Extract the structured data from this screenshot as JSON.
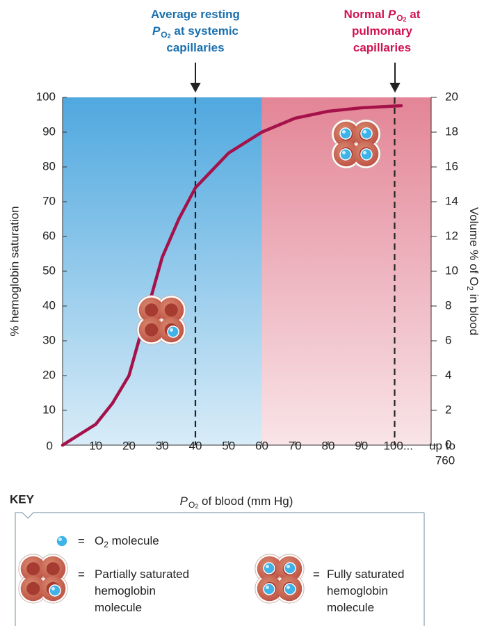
{
  "chart_data": {
    "type": "line",
    "x": [
      0,
      5,
      10,
      15,
      20,
      25,
      30,
      35,
      40,
      50,
      60,
      70,
      80,
      90,
      100,
      102
    ],
    "values": [
      0,
      3,
      6,
      12,
      20,
      37,
      54,
      65,
      74,
      84,
      90,
      94,
      96,
      97,
      97.5,
      97.6
    ],
    "color": "#a5124a",
    "xlim": [
      0,
      111
    ],
    "xticks": [
      0,
      10,
      20,
      30,
      40,
      50,
      60,
      70,
      80,
      90,
      {
        "value": 100,
        "label": "100..."
      }
    ],
    "x_extra_label": [
      "up to",
      "760"
    ],
    "ylim": [
      0,
      100
    ],
    "yticks": [
      10,
      20,
      30,
      40,
      50,
      60,
      70,
      80,
      90,
      100
    ],
    "y2lim": [
      0,
      20
    ],
    "y2ticks": [
      0,
      2,
      4,
      6,
      8,
      10,
      12,
      14,
      16,
      18,
      20
    ],
    "ylabel": "% hemoglobin saturation",
    "y2label": [
      {
        "t": "Volume % of O"
      },
      {
        "t": "2",
        "s": "sub"
      },
      {
        "t": " in blood"
      }
    ],
    "xlabel": [
      {
        "t": "P",
        "s": "i"
      },
      {
        "t": "O",
        "s": "sub"
      },
      {
        "t": "2",
        "s": "subsub"
      },
      {
        "t": " of blood (mm Hg)"
      }
    ],
    "regions": [
      {
        "x0": 0,
        "x1": 60,
        "color": "#4fa8df"
      },
      {
        "x0": 60,
        "x1": 111,
        "color": "#e38596"
      }
    ],
    "annotations": [
      {
        "x": 40,
        "color": "#1a6fae",
        "lines": [
          [
            {
              "t": "Average resting"
            }
          ],
          [
            {
              "t": "P",
              "s": "i"
            },
            {
              "t": "O",
              "s": "sub"
            },
            {
              "t": "2",
              "s": "subsub"
            },
            {
              "t": " at systemic"
            }
          ],
          [
            {
              "t": "capillaries"
            }
          ]
        ]
      },
      {
        "x": 100,
        "color": "#d0124f",
        "lines": [
          [
            {
              "t": "Normal "
            },
            {
              "t": "P",
              "s": "i"
            },
            {
              "t": "O",
              "s": "sub"
            },
            {
              "t": "2",
              "s": "subsub"
            },
            {
              "t": " at"
            }
          ],
          [
            {
              "t": "pulmonary"
            }
          ],
          [
            {
              "t": "capillaries"
            }
          ]
        ]
      }
    ],
    "key": {
      "title": "KEY",
      "items": [
        {
          "sign": "=",
          "lines": [
            [
              {
                "t": "O"
              },
              {
                "t": "2",
                "s": "sub"
              },
              {
                "t": " molecule"
              }
            ]
          ]
        },
        {
          "sign": "=",
          "lines": [
            [
              {
                "t": "Partially saturated"
              }
            ],
            [
              {
                "t": "hemoglobin"
              }
            ],
            [
              {
                "t": "molecule"
              }
            ]
          ]
        },
        {
          "sign": "=",
          "lines": [
            [
              {
                "t": "Fully saturated"
              }
            ],
            [
              {
                "t": "hemoglobin"
              }
            ],
            [
              {
                "t": "molecule"
              }
            ]
          ]
        }
      ]
    }
  }
}
